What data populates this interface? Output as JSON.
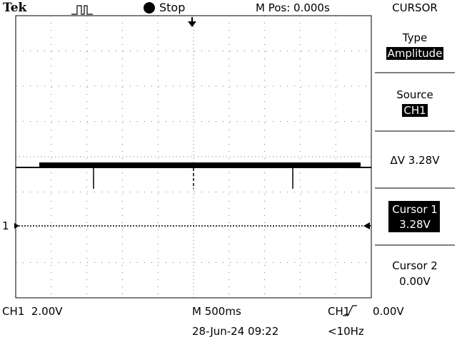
{
  "header": {
    "brand": "Tek",
    "status": "Stop",
    "position": "M Pos: 0.000s"
  },
  "menu": {
    "title": "CURSOR",
    "items": [
      {
        "label": "Type",
        "value": "Amplitude"
      },
      {
        "label": "Source",
        "value": "CH1"
      },
      {
        "label": "ΔV 3.28V"
      },
      {
        "label": "Cursor 1",
        "value": "3.28V"
      },
      {
        "label": "Cursor 2",
        "value": "0.00V"
      }
    ]
  },
  "screen": {
    "channel_marker": "1"
  },
  "footer": {
    "channel_scale": "CH1  2.00V",
    "timebase": "M 500ms",
    "trigger_source": "CH1",
    "trigger_level": "0.00V",
    "date_time": "28-Jun-24 09:22",
    "frequency": "<10Hz"
  }
}
